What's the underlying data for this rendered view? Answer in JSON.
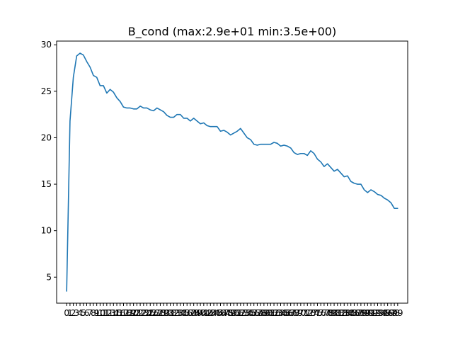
{
  "chart_data": {
    "type": "line",
    "title": "B_cond (max:2.9e+01 min:3.5e+00)",
    "xlabel": "",
    "ylabel": "",
    "xlim": [
      -3,
      102
    ],
    "ylim": [
      2.2,
      30.4
    ],
    "grid": false,
    "colors": {
      "line": "#1f77b4",
      "axes": "#000000",
      "background": "#ffffff"
    },
    "yticks": [
      5,
      10,
      15,
      20,
      25,
      30
    ],
    "xticks": [
      0,
      1,
      2,
      3,
      4,
      5,
      6,
      7,
      8,
      9,
      10,
      11,
      12,
      13,
      14,
      15,
      16,
      17,
      18,
      19,
      20,
      21,
      22,
      23,
      24,
      25,
      26,
      27,
      28,
      29,
      30,
      31,
      32,
      33,
      34,
      35,
      36,
      37,
      38,
      39,
      40,
      41,
      42,
      43,
      44,
      45,
      46,
      47,
      48,
      49,
      50,
      51,
      52,
      53,
      54,
      55,
      56,
      57,
      58,
      59,
      60,
      61,
      62,
      63,
      64,
      65,
      66,
      67,
      68,
      69,
      70,
      71,
      72,
      73,
      74,
      75,
      76,
      77,
      78,
      79,
      80,
      81,
      82,
      83,
      84,
      85,
      86,
      87,
      88,
      89,
      90,
      91,
      92,
      93,
      94,
      95,
      96,
      97,
      98,
      99
    ],
    "series": [
      {
        "x": [
          0,
          1,
          2,
          3,
          4,
          5,
          6,
          7,
          8,
          9,
          10,
          11,
          12,
          13,
          14,
          15,
          16,
          17,
          18,
          19,
          20,
          21,
          22,
          23,
          24,
          25,
          26,
          27,
          28,
          29,
          30,
          31,
          32,
          33,
          34,
          35,
          36,
          37,
          38,
          39,
          40,
          41,
          42,
          43,
          44,
          45,
          46,
          47,
          48,
          49,
          50,
          51,
          52,
          53,
          54,
          55,
          56,
          57,
          58,
          59,
          60,
          61,
          62,
          63,
          64,
          65,
          66,
          67,
          68,
          69,
          70,
          71,
          72,
          73,
          74,
          75,
          76,
          77,
          78,
          79,
          80,
          81,
          82,
          83,
          84,
          85,
          86,
          87,
          88,
          89,
          90,
          91,
          92,
          93,
          94,
          95,
          96,
          97,
          98,
          99
        ],
        "values": [
          3.5,
          21.8,
          26.5,
          28.8,
          29.1,
          28.9,
          28.2,
          27.6,
          26.7,
          26.5,
          25.6,
          25.6,
          24.8,
          25.2,
          24.9,
          24.3,
          23.9,
          23.3,
          23.2,
          23.2,
          23.1,
          23.1,
          23.4,
          23.2,
          23.2,
          23.0,
          22.9,
          23.2,
          23.0,
          22.8,
          22.4,
          22.2,
          22.2,
          22.5,
          22.5,
          22.1,
          22.1,
          21.8,
          22.1,
          21.8,
          21.5,
          21.6,
          21.3,
          21.2,
          21.2,
          21.2,
          20.7,
          20.8,
          20.6,
          20.3,
          20.5,
          20.7,
          21.0,
          20.5,
          20.0,
          19.8,
          19.3,
          19.2,
          19.3,
          19.3,
          19.3,
          19.3,
          19.5,
          19.4,
          19.1,
          19.2,
          19.1,
          18.9,
          18.4,
          18.2,
          18.3,
          18.3,
          18.1,
          18.6,
          18.3,
          17.7,
          17.4,
          16.9,
          17.2,
          16.8,
          16.4,
          16.6,
          16.2,
          15.8,
          15.9,
          15.3,
          15.1,
          15.0,
          15.0,
          14.4,
          14.1,
          14.4,
          14.2,
          13.9,
          13.8,
          13.5,
          13.3,
          13.0,
          12.4,
          12.4
        ]
      }
    ]
  }
}
